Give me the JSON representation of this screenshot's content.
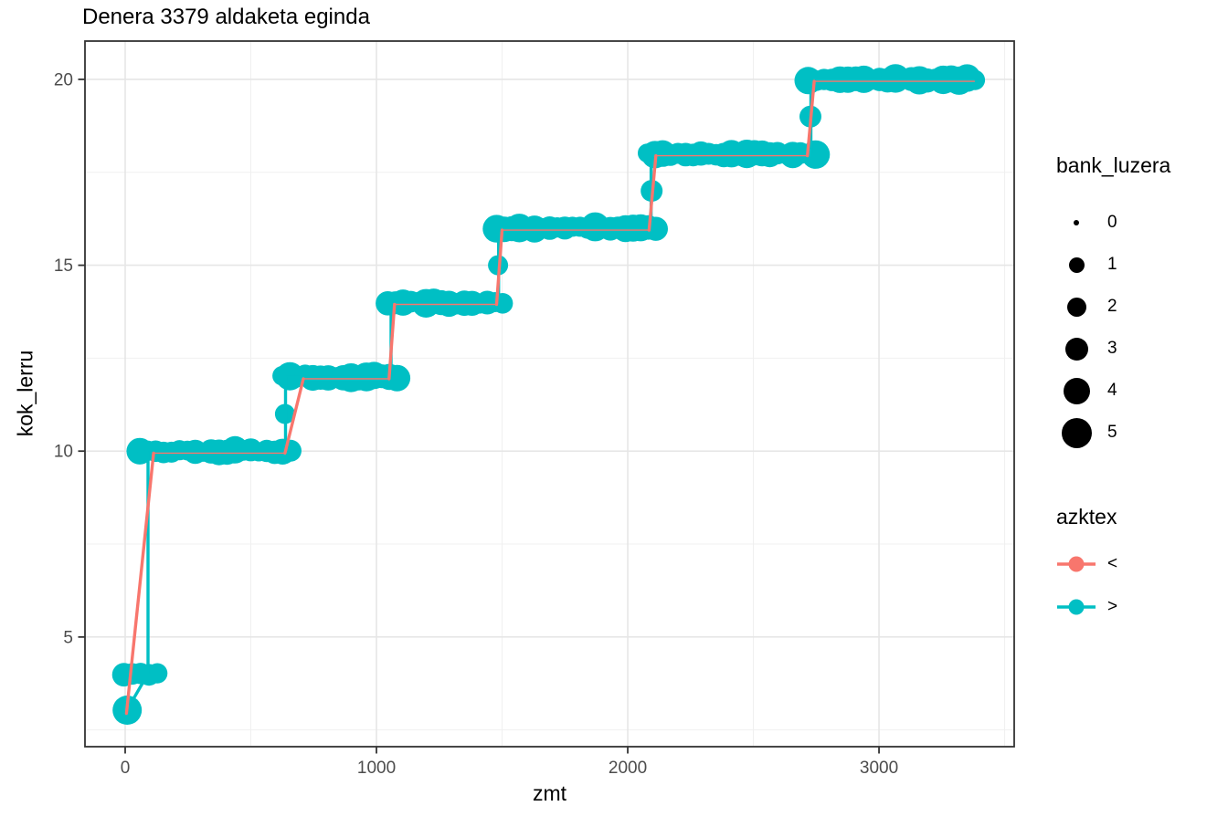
{
  "chart_data": {
    "type": "scatter",
    "title": "Denera 3379 aldaketa eginda",
    "xlabel": "zmt",
    "ylabel": "kok_lerru",
    "xlim": [
      -160,
      3538
    ],
    "ylim": [
      2.05,
      21.03
    ],
    "x_major_ticks": [
      0,
      1000,
      2000,
      3000
    ],
    "x_minor_ticks": [
      500,
      1500,
      2500,
      3500
    ],
    "y_major_ticks": [
      5,
      10,
      15,
      20
    ],
    "y_minor_ticks": [
      2.5,
      7.5,
      12.5,
      17.5
    ],
    "grid": true,
    "legend_position": "right",
    "point_color": "#00BFC4",
    "colors": {
      "lt": "#F8766D",
      "gt": "#00BFC4"
    },
    "bands": [
      {
        "y": 3,
        "x_start": 8,
        "x_end": 8,
        "r_min": 16,
        "r_max": 17
      },
      {
        "y": 4,
        "x_start": -5,
        "x_end": 128,
        "r_min": 10.5,
        "r_max": 13
      },
      {
        "y": 10,
        "x_start": 58,
        "x_end": 658,
        "r_min": 10,
        "r_max": 16
      },
      {
        "y": 12,
        "x_start": 625,
        "x_end": 1082,
        "r_min": 10,
        "r_max": 16
      },
      {
        "y": 14,
        "x_start": 1045,
        "x_end": 1502,
        "r_min": 10,
        "r_max": 16
      },
      {
        "y": 16,
        "x_start": 1478,
        "x_end": 2112,
        "r_min": 10,
        "r_max": 16
      },
      {
        "y": 18,
        "x_start": 2078,
        "x_end": 2748,
        "r_min": 10,
        "r_max": 16
      },
      {
        "y": 20,
        "x_start": 2718,
        "x_end": 3382,
        "r_min": 10,
        "r_max": 16
      }
    ],
    "single_points": [
      {
        "x": 636,
        "y": 11,
        "r": 11
      },
      {
        "x": 1484,
        "y": 15,
        "r": 11
      },
      {
        "x": 2095,
        "y": 17,
        "r": 12
      },
      {
        "x": 2727,
        "y": 19,
        "r": 12
      }
    ],
    "lines": {
      "lt": [
        [
          5,
          3
        ],
        [
          113,
          10
        ],
        [
          636,
          10
        ],
        [
          709,
          12
        ],
        [
          1050,
          12
        ],
        [
          1072,
          14
        ],
        [
          1478,
          14
        ],
        [
          1500,
          16
        ],
        [
          2085,
          16
        ],
        [
          2112,
          18
        ],
        [
          2715,
          18
        ],
        [
          2742,
          20
        ],
        [
          3379,
          20
        ]
      ],
      "gt": [
        [
          5,
          3
        ],
        [
          91,
          4
        ],
        [
          91,
          10
        ],
        [
          638,
          10
        ],
        [
          638,
          12
        ],
        [
          1058,
          12
        ],
        [
          1058,
          14
        ],
        [
          1486,
          14
        ],
        [
          1486,
          16
        ],
        [
          2093,
          16
        ],
        [
          2093,
          18
        ],
        [
          2729,
          18
        ],
        [
          2729,
          20
        ],
        [
          3379,
          20
        ]
      ]
    }
  },
  "legend": {
    "size": {
      "title": "bank_luzera",
      "items": [
        {
          "label": "0",
          "d": 6
        },
        {
          "label": "1",
          "d": 17
        },
        {
          "label": "2",
          "d": 21
        },
        {
          "label": "3",
          "d": 25
        },
        {
          "label": "4",
          "d": 29
        },
        {
          "label": "5",
          "d": 33
        }
      ]
    },
    "color": {
      "title": "azktex",
      "items": [
        {
          "label": "<",
          "color": "#F8766D"
        },
        {
          "label": ">",
          "color": "#00BFC4"
        }
      ]
    }
  }
}
